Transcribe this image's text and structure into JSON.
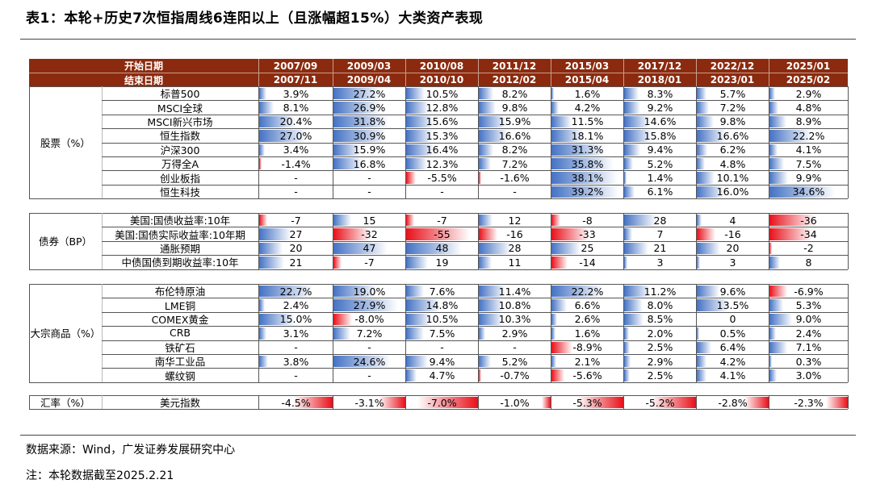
{
  "title": "表1：本轮+历史7次恒指周线6连阳以上（且涨幅超15%）大类资产表现",
  "source": "数据来源：Wind，广发证券发展研究中心",
  "note": "注：本轮数据截至2025.2.21",
  "colors": {
    "header_bg": "#8B2A0E",
    "pos_bar": "#4472C4",
    "neg_bar": "#E8101A"
  },
  "header": {
    "start_label": "开始日期",
    "end_label": "结束日期",
    "start_dates": [
      "2007/09",
      "2009/03",
      "2010/08",
      "2011/12",
      "2015/03",
      "2017/12",
      "2022/12",
      "2025/01"
    ],
    "end_dates": [
      "2007/11",
      "2009/04",
      "2010/10",
      "2012/02",
      "2015/04",
      "2018/01",
      "2023/01",
      "2025/02"
    ]
  },
  "groups": [
    {
      "name": "股票（%）",
      "scale": 40,
      "rows": [
        {
          "label": "标普500",
          "values": [
            "3.9%",
            "27.2%",
            "10.5%",
            "8.2%",
            "1.6%",
            "8.3%",
            "5.7%",
            "2.9%"
          ],
          "nums": [
            3.9,
            27.2,
            10.5,
            8.2,
            1.6,
            8.3,
            5.7,
            2.9
          ]
        },
        {
          "label": "MSCI全球",
          "values": [
            "8.1%",
            "26.9%",
            "12.8%",
            "9.8%",
            "4.2%",
            "9.2%",
            "7.2%",
            "4.8%"
          ],
          "nums": [
            8.1,
            26.9,
            12.8,
            9.8,
            4.2,
            9.2,
            7.2,
            4.8
          ]
        },
        {
          "label": "MSCI新兴市场",
          "values": [
            "20.4%",
            "31.8%",
            "15.6%",
            "15.9%",
            "11.5%",
            "14.6%",
            "9.8%",
            "8.9%"
          ],
          "nums": [
            20.4,
            31.8,
            15.6,
            15.9,
            11.5,
            14.6,
            9.8,
            8.9
          ]
        },
        {
          "label": "恒生指数",
          "values": [
            "27.0%",
            "30.9%",
            "15.3%",
            "16.6%",
            "18.1%",
            "15.8%",
            "16.6%",
            "22.2%"
          ],
          "nums": [
            27.0,
            30.9,
            15.3,
            16.6,
            18.1,
            15.8,
            16.6,
            22.2
          ]
        },
        {
          "label": "沪深300",
          "values": [
            "3.4%",
            "15.9%",
            "16.4%",
            "8.2%",
            "31.3%",
            "9.4%",
            "6.2%",
            "4.1%"
          ],
          "nums": [
            3.4,
            15.9,
            16.4,
            8.2,
            31.3,
            9.4,
            6.2,
            4.1
          ]
        },
        {
          "label": "万得全A",
          "values": [
            "-1.4%",
            "16.8%",
            "12.3%",
            "7.2%",
            "35.8%",
            "5.2%",
            "4.8%",
            "7.5%"
          ],
          "nums": [
            -1.4,
            16.8,
            12.3,
            7.2,
            35.8,
            5.2,
            4.8,
            7.5
          ]
        },
        {
          "label": "创业板指",
          "values": [
            "-",
            "-",
            "-5.5%",
            "-1.6%",
            "38.1%",
            "1.4%",
            "10.1%",
            "9.9%"
          ],
          "nums": [
            null,
            null,
            -5.5,
            -1.6,
            38.1,
            1.4,
            10.1,
            9.9
          ]
        },
        {
          "label": "恒生科技",
          "values": [
            "-",
            "-",
            "-",
            "-",
            "39.2%",
            "6.1%",
            "16.0%",
            "34.6%"
          ],
          "nums": [
            null,
            null,
            null,
            null,
            39.2,
            6.1,
            16.0,
            34.6
          ]
        }
      ]
    },
    {
      "name": "债券（BP）",
      "scale": 60,
      "rows": [
        {
          "label": "美国:国债收益率:10年",
          "values": [
            "-7",
            "15",
            "-7",
            "12",
            "-8",
            "28",
            "4",
            "-36"
          ],
          "nums": [
            -7,
            15,
            -7,
            12,
            -8,
            28,
            4,
            -36
          ]
        },
        {
          "label": "美国:国债实际收益率:10年期",
          "values": [
            "27",
            "-32",
            "-55",
            "-16",
            "-33",
            "7",
            "-16",
            "-34"
          ],
          "nums": [
            27,
            -32,
            -55,
            -16,
            -33,
            7,
            -16,
            -34
          ]
        },
        {
          "label": "通胀预期",
          "values": [
            "20",
            "47",
            "48",
            "28",
            "25",
            "21",
            "20",
            "-2"
          ],
          "nums": [
            20,
            47,
            48,
            28,
            25,
            21,
            20,
            -2
          ]
        },
        {
          "label": "中债国债到期收益率:10年",
          "values": [
            "21",
            "-7",
            "19",
            "11",
            "-14",
            "3",
            "3",
            "8"
          ],
          "nums": [
            21,
            -7,
            19,
            11,
            -14,
            3,
            3,
            8
          ]
        }
      ]
    },
    {
      "name": "大宗商品（%）",
      "scale": 30,
      "rows": [
        {
          "label": "布伦特原油",
          "values": [
            "22.7%",
            "19.0%",
            "7.6%",
            "11.4%",
            "22.2%",
            "11.2%",
            "9.6%",
            "-6.9%"
          ],
          "nums": [
            22.7,
            19.0,
            7.6,
            11.4,
            22.2,
            11.2,
            9.6,
            -6.9
          ]
        },
        {
          "label": "LME铜",
          "values": [
            "2.4%",
            "27.9%",
            "14.8%",
            "10.8%",
            "6.6%",
            "8.0%",
            "13.5%",
            "5.3%"
          ],
          "nums": [
            2.4,
            27.9,
            14.8,
            10.8,
            6.6,
            8.0,
            13.5,
            5.3
          ]
        },
        {
          "label": "COMEX黄金",
          "values": [
            "15.0%",
            "-8.0%",
            "10.5%",
            "10.3%",
            "2.6%",
            "8.5%",
            "0",
            "9.0%"
          ],
          "nums": [
            15.0,
            -8.0,
            10.5,
            10.3,
            2.6,
            8.5,
            0,
            9.0
          ]
        },
        {
          "label": "CRB",
          "values": [
            "3.1%",
            "7.2%",
            "7.5%",
            "2.9%",
            "1.6%",
            "2.0%",
            "0.5%",
            "2.4%"
          ],
          "nums": [
            3.1,
            7.2,
            7.5,
            2.9,
            1.6,
            2.0,
            0.5,
            2.4
          ]
        },
        {
          "label": "铁矿石",
          "values": [
            "-",
            "-",
            "-",
            "-",
            "-8.9%",
            "2.5%",
            "6.4%",
            "7.1%"
          ],
          "nums": [
            null,
            null,
            null,
            null,
            -8.9,
            2.5,
            6.4,
            7.1
          ]
        },
        {
          "label": "南华工业品",
          "values": [
            "3.8%",
            "24.6%",
            "9.4%",
            "5.2%",
            "2.1%",
            "2.9%",
            "4.2%",
            "0.3%"
          ],
          "nums": [
            3.8,
            24.6,
            9.4,
            5.2,
            2.1,
            2.9,
            4.2,
            0.3
          ]
        },
        {
          "label": "螺纹钢",
          "values": [
            "-",
            "-",
            "4.7%",
            "-0.7%",
            "-5.6%",
            "2.5%",
            "4.1%",
            "3.0%"
          ],
          "nums": [
            null,
            null,
            4.7,
            -0.7,
            -5.6,
            2.5,
            4.1,
            3.0
          ]
        }
      ]
    },
    {
      "name": "汇率（%）",
      "scale": 8,
      "rows": [
        {
          "label": "美元指数",
          "values": [
            "-4.5%",
            "-3.1%",
            "-7.0%",
            "-1.0%",
            "-5.3%",
            "-5.2%",
            "-2.8%",
            "-2.3%"
          ],
          "nums": [
            -4.5,
            -3.1,
            -7.0,
            -1.0,
            -5.3,
            -5.2,
            -2.8,
            -2.3
          ]
        }
      ]
    }
  ]
}
